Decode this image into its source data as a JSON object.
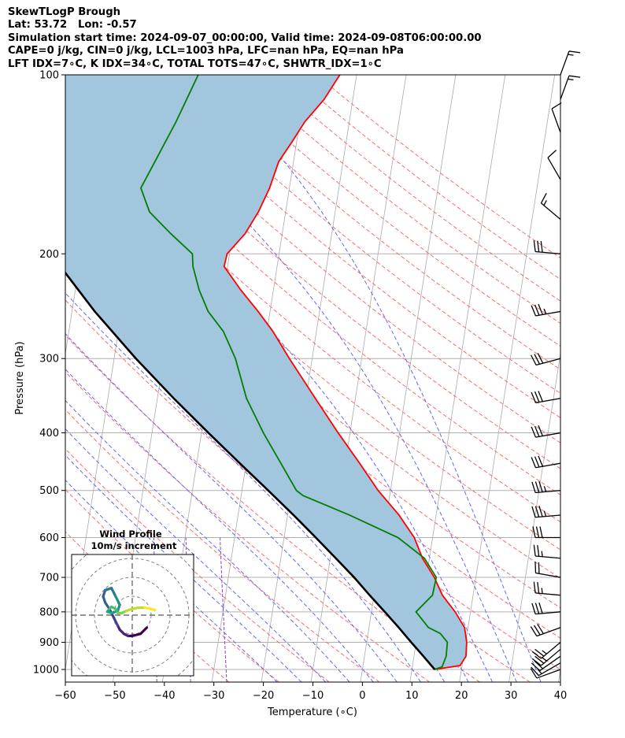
{
  "header": {
    "line1": "SkewTLogP Brough",
    "line2": "Lat: 53.72   Lon: -0.57",
    "line3": "Simulation start time: 2024-09-07_00:00:00, Valid time: 2024-09-08T06:00:00.00",
    "line4": "CAPE=0 j/kg, CIN=0 j/kg, LCL=1003 hPa, LFC=nan hPa, EQ=nan hPa",
    "line5": "LFT IDX=7∘C, K IDX=34∘C, TOTAL TOTS=47∘C, SHWTR_IDX=1∘C"
  },
  "chart_data": {
    "type": "line",
    "subtype": "skew-t log-p",
    "xlabel": "Temperature (∘C)",
    "ylabel": "Pressure (hPa)",
    "xlim": [
      -60,
      40
    ],
    "ylim": [
      1050,
      100
    ],
    "yscale": "log",
    "x_ticks": [
      -60,
      -50,
      -40,
      -30,
      -20,
      -10,
      0,
      10,
      20,
      30,
      40
    ],
    "x_tick_labels": [
      "−60",
      "−50",
      "−40",
      "−30",
      "−20",
      "−10",
      "0",
      "10",
      "20",
      "30",
      "40"
    ],
    "y_ticks": [
      1000,
      900,
      800,
      700,
      600,
      500,
      400,
      300,
      200,
      100
    ],
    "grid": true,
    "colors": {
      "temperature": "#ff0000",
      "dewpoint": "#008000",
      "parcel": "#000000",
      "cape_fill": "#a3c6df",
      "dry_adiabats": "#ff6a6a",
      "moist_adiabats": "#5a6aff",
      "mixing_ratio": "#9040c0",
      "isotherms": "#aaaaaa"
    },
    "temperature": {
      "pressure": [
        1000,
        985,
        950,
        900,
        850,
        800,
        750,
        700,
        650,
        600,
        550,
        500,
        450,
        400,
        350,
        300,
        270,
        250,
        230,
        210,
        200,
        185,
        170,
        155,
        140,
        130,
        120,
        110,
        100
      ],
      "value": [
        14.6,
        19.6,
        20.5,
        20.2,
        19.3,
        16.9,
        13.8,
        11.6,
        8.6,
        6.3,
        2.5,
        -2.5,
        -7.1,
        -12.4,
        -18.1,
        -24.6,
        -28.8,
        -32.4,
        -36.6,
        -40.7,
        -40.5,
        -37.5,
        -35.5,
        -34.0,
        -33.0,
        -31.0,
        -29.0,
        -25.8,
        -23.4
      ]
    },
    "dewpoint": {
      "pressure": [
        1000,
        990,
        950,
        900,
        870,
        850,
        800,
        750,
        700,
        650,
        600,
        550,
        510,
        500,
        450,
        400,
        350,
        300,
        270,
        250,
        230,
        210,
        200,
        185,
        170,
        155,
        140,
        120,
        100
      ],
      "value": [
        14.5,
        16.0,
        16.5,
        16.3,
        14.6,
        12.0,
        9.0,
        11.8,
        12.0,
        9.0,
        3.0,
        -7.5,
        -17.5,
        -19.0,
        -23.0,
        -27.5,
        -32.0,
        -35.5,
        -38.8,
        -42.5,
        -45.0,
        -47.0,
        -47.5,
        -52.5,
        -57.5,
        -60.0,
        -58.0,
        -55.0,
        -52.0
      ]
    },
    "parcel": {
      "pressure": [
        1000,
        950,
        900,
        850,
        800,
        750,
        700,
        650,
        600,
        550,
        500,
        450,
        400,
        350,
        300,
        250,
        200,
        150,
        100
      ],
      "value": [
        14.6,
        11.9,
        9.0,
        6.0,
        2.7,
        -0.9,
        -4.6,
        -8.9,
        -13.6,
        -18.8,
        -24.7,
        -31.3,
        -38.6,
        -46.7,
        -55.6,
        -65.4,
        -76.1,
        -87.8,
        -100.3
      ]
    },
    "wind_barbs": {
      "pressure": [
        1000,
        975,
        950,
        925,
        900,
        850,
        800,
        750,
        700,
        650,
        600,
        550,
        500,
        450,
        400,
        350,
        300,
        250,
        200,
        175,
        150,
        125,
        110,
        100
      ],
      "speed_kt": [
        10,
        15,
        20,
        25,
        25,
        30,
        30,
        25,
        20,
        25,
        30,
        35,
        35,
        30,
        30,
        30,
        30,
        35,
        30,
        15,
        10,
        10,
        15,
        15
      ],
      "direction_deg": [
        250,
        240,
        235,
        230,
        230,
        250,
        265,
        275,
        280,
        275,
        270,
        265,
        265,
        260,
        260,
        260,
        255,
        260,
        275,
        310,
        330,
        340,
        20,
        20
      ]
    },
    "hodograph": {
      "title_line1": "Wind Profile",
      "title_line2": "10m/s increment",
      "ring_spacing_ms": 10,
      "u": [
        3.5,
        2.0,
        0.0,
        -1.0,
        -2.0,
        -3.0,
        -3.5,
        -4.5,
        -5.5,
        -6.5,
        -7.0,
        -6.5,
        -5.0,
        -4.0,
        -3.0,
        -3.5,
        -5.0,
        -6.0,
        -5.5,
        -5.0,
        -4.0,
        -3.5,
        -2.5,
        -1.5,
        0.0,
        1.5,
        3.0,
        4.5,
        5.5
      ],
      "v": [
        -3.0,
        -4.5,
        -5.0,
        -5.0,
        -4.5,
        -3.5,
        -2.5,
        -0.5,
        1.5,
        3.0,
        4.5,
        6.0,
        6.5,
        4.5,
        2.5,
        1.0,
        0.5,
        0.8,
        1.5,
        2.0,
        1.5,
        0.5,
        0.5,
        1.0,
        1.5,
        1.8,
        1.8,
        1.5,
        1.2
      ]
    }
  }
}
